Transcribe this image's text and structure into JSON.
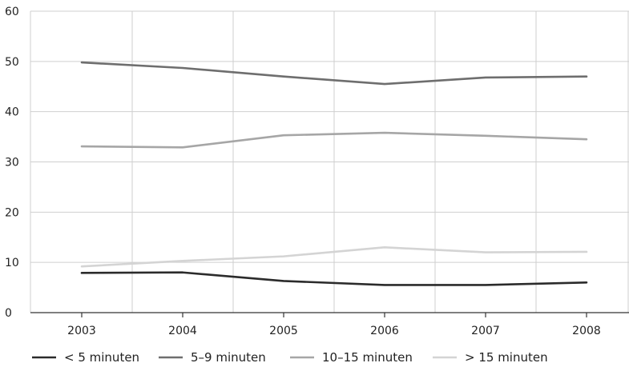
{
  "chart_data": {
    "type": "line",
    "title": "",
    "xlabel": "",
    "ylabel": "",
    "x": [
      "2003",
      "2004",
      "2005",
      "2006",
      "2007",
      "2008"
    ],
    "ylim": [
      0,
      60
    ],
    "yticks": [
      "0",
      "10",
      "20",
      "30",
      "40",
      "50",
      "60"
    ],
    "grid": true,
    "legend_position": "bottom",
    "series": [
      {
        "name": "< 5 minuten",
        "color": "#2b2b2b",
        "values": [
          7.9,
          8.0,
          6.3,
          5.5,
          5.5,
          6.0
        ]
      },
      {
        "name": "5–9 minuten",
        "color": "#6e6e6e",
        "values": [
          49.8,
          48.7,
          47.0,
          45.5,
          46.8,
          47.0
        ]
      },
      {
        "name": "10–15 minuten",
        "color": "#a6a6a6",
        "values": [
          33.1,
          32.9,
          35.3,
          35.8,
          35.2,
          34.5
        ]
      },
      {
        "name": "> 15 minuten",
        "color": "#d4d4d4",
        "values": [
          9.2,
          10.3,
          11.2,
          13.0,
          12.0,
          12.1
        ]
      }
    ]
  }
}
